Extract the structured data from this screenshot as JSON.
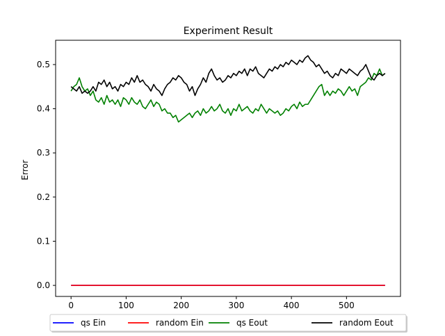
{
  "chart_data": {
    "type": "line",
    "title": "Experiment Result",
    "xlabel": "",
    "ylabel": "Error",
    "xlim": [
      -28,
      598
    ],
    "ylim": [
      -0.025,
      0.555
    ],
    "xticks": [
      0,
      100,
      200,
      300,
      400,
      500
    ],
    "yticks": [
      0.0,
      0.1,
      0.2,
      0.3,
      0.4,
      0.5
    ],
    "xtick_labels": [
      "0",
      "100",
      "200",
      "300",
      "400",
      "500"
    ],
    "ytick_labels": [
      "0.0",
      "0.1",
      "0.2",
      "0.3",
      "0.4",
      "0.5"
    ],
    "grid": false,
    "legend_position": "below plot, centered, 4 columns",
    "series": [
      {
        "name": "qs Ein",
        "color": "#0000ff",
        "x": [
          0,
          570
        ],
        "y": [
          0.0,
          0.0
        ]
      },
      {
        "name": "random Ein",
        "color": "#ff0000",
        "x": [
          0,
          570
        ],
        "y": [
          0.0,
          0.0
        ]
      },
      {
        "name": "qs Eout",
        "color": "#008000",
        "x": [
          0,
          5,
          10,
          15,
          20,
          25,
          30,
          35,
          40,
          45,
          50,
          55,
          60,
          65,
          70,
          75,
          80,
          85,
          90,
          95,
          100,
          105,
          110,
          115,
          120,
          125,
          130,
          135,
          140,
          145,
          150,
          155,
          160,
          165,
          170,
          175,
          180,
          185,
          190,
          195,
          200,
          205,
          210,
          215,
          220,
          225,
          230,
          235,
          240,
          245,
          250,
          255,
          260,
          265,
          270,
          275,
          280,
          285,
          290,
          295,
          300,
          305,
          310,
          315,
          320,
          325,
          330,
          335,
          340,
          345,
          350,
          355,
          360,
          365,
          370,
          375,
          380,
          385,
          390,
          395,
          400,
          405,
          410,
          415,
          420,
          425,
          430,
          435,
          440,
          445,
          450,
          455,
          460,
          465,
          470,
          475,
          480,
          485,
          490,
          495,
          500,
          505,
          510,
          515,
          520,
          525,
          530,
          535,
          540,
          545,
          550,
          555,
          560,
          565,
          570
        ],
        "y": [
          0.44,
          0.45,
          0.455,
          0.47,
          0.45,
          0.44,
          0.445,
          0.43,
          0.44,
          0.42,
          0.415,
          0.425,
          0.41,
          0.43,
          0.415,
          0.42,
          0.41,
          0.42,
          0.405,
          0.425,
          0.42,
          0.41,
          0.425,
          0.415,
          0.41,
          0.42,
          0.405,
          0.4,
          0.41,
          0.42,
          0.405,
          0.415,
          0.41,
          0.395,
          0.4,
          0.39,
          0.39,
          0.38,
          0.385,
          0.37,
          0.375,
          0.38,
          0.385,
          0.39,
          0.38,
          0.39,
          0.395,
          0.385,
          0.4,
          0.39,
          0.395,
          0.405,
          0.395,
          0.4,
          0.41,
          0.395,
          0.39,
          0.4,
          0.385,
          0.4,
          0.395,
          0.41,
          0.395,
          0.4,
          0.405,
          0.395,
          0.39,
          0.4,
          0.395,
          0.41,
          0.4,
          0.39,
          0.4,
          0.395,
          0.39,
          0.395,
          0.385,
          0.39,
          0.4,
          0.395,
          0.405,
          0.41,
          0.4,
          0.415,
          0.405,
          0.41,
          0.41,
          0.42,
          0.43,
          0.44,
          0.45,
          0.455,
          0.43,
          0.44,
          0.43,
          0.44,
          0.435,
          0.445,
          0.44,
          0.43,
          0.44,
          0.45,
          0.44,
          0.445,
          0.43,
          0.45,
          0.455,
          0.46,
          0.47,
          0.465,
          0.48,
          0.475,
          0.49,
          0.475,
          0.48
        ]
      },
      {
        "name": "random Eout",
        "color": "#000000",
        "x": [
          0,
          5,
          10,
          15,
          20,
          25,
          30,
          35,
          40,
          45,
          50,
          55,
          60,
          65,
          70,
          75,
          80,
          85,
          90,
          95,
          100,
          105,
          110,
          115,
          120,
          125,
          130,
          135,
          140,
          145,
          150,
          155,
          160,
          165,
          170,
          175,
          180,
          185,
          190,
          195,
          200,
          205,
          210,
          215,
          220,
          225,
          230,
          235,
          240,
          245,
          250,
          255,
          260,
          265,
          270,
          275,
          280,
          285,
          290,
          295,
          300,
          305,
          310,
          315,
          320,
          325,
          330,
          335,
          340,
          345,
          350,
          355,
          360,
          365,
          370,
          375,
          380,
          385,
          390,
          395,
          400,
          405,
          410,
          415,
          420,
          425,
          430,
          435,
          440,
          445,
          450,
          455,
          460,
          465,
          470,
          475,
          480,
          485,
          490,
          495,
          500,
          505,
          510,
          515,
          520,
          525,
          530,
          535,
          540,
          545,
          550,
          555,
          560,
          565,
          570
        ],
        "y": [
          0.45,
          0.445,
          0.44,
          0.45,
          0.435,
          0.44,
          0.435,
          0.44,
          0.45,
          0.44,
          0.46,
          0.455,
          0.465,
          0.45,
          0.46,
          0.445,
          0.45,
          0.44,
          0.455,
          0.45,
          0.46,
          0.455,
          0.47,
          0.46,
          0.475,
          0.46,
          0.465,
          0.455,
          0.45,
          0.44,
          0.455,
          0.445,
          0.44,
          0.43,
          0.445,
          0.455,
          0.46,
          0.47,
          0.465,
          0.475,
          0.47,
          0.46,
          0.455,
          0.44,
          0.45,
          0.43,
          0.445,
          0.455,
          0.47,
          0.46,
          0.48,
          0.49,
          0.475,
          0.465,
          0.47,
          0.46,
          0.465,
          0.475,
          0.47,
          0.48,
          0.475,
          0.485,
          0.48,
          0.49,
          0.475,
          0.49,
          0.485,
          0.495,
          0.48,
          0.475,
          0.47,
          0.48,
          0.49,
          0.485,
          0.495,
          0.49,
          0.5,
          0.495,
          0.505,
          0.5,
          0.51,
          0.505,
          0.5,
          0.51,
          0.505,
          0.515,
          0.52,
          0.51,
          0.505,
          0.495,
          0.5,
          0.49,
          0.48,
          0.485,
          0.475,
          0.47,
          0.48,
          0.475,
          0.49,
          0.485,
          0.48,
          0.49,
          0.485,
          0.48,
          0.475,
          0.485,
          0.49,
          0.5,
          0.485,
          0.47,
          0.465,
          0.475,
          0.48,
          0.475,
          0.48
        ]
      }
    ]
  }
}
